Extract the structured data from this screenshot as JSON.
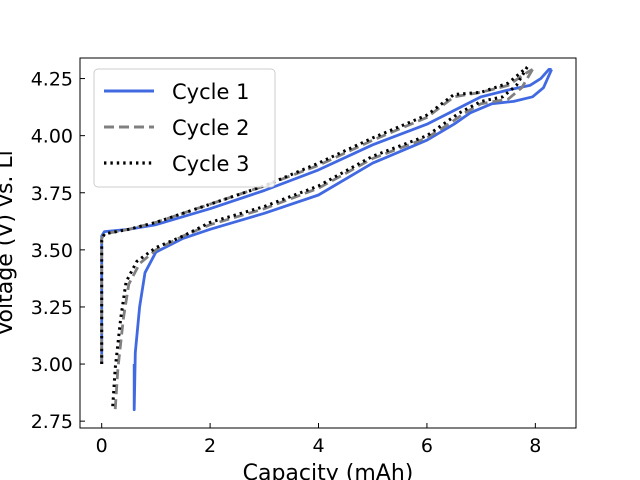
{
  "chart_data": {
    "type": "line",
    "xlabel": "Capacity (mAh)",
    "ylabel": "Voltage (V) vs. Li",
    "xlim": [
      -0.4,
      8.75
    ],
    "ylim": [
      2.72,
      4.34
    ],
    "xticks": [
      0,
      2,
      4,
      6,
      8
    ],
    "yticks": [
      2.75,
      3.0,
      3.25,
      3.5,
      3.75,
      4.0,
      4.25
    ],
    "xtick_labels": [
      "0",
      "2",
      "4",
      "6",
      "8"
    ],
    "ytick_labels": [
      "2.75",
      "3.00",
      "3.25",
      "3.50",
      "3.75",
      "4.00",
      "4.25"
    ],
    "grid": false,
    "legend_position": "top-left",
    "series": [
      {
        "name": "Cycle 1",
        "color": "#4169E1",
        "style": "solid",
        "charge": {
          "x": [
            0.0,
            0.0,
            0.05,
            0.5,
            1.0,
            2.0,
            3.0,
            4.0,
            5.0,
            6.0,
            6.5,
            7.0,
            7.5,
            7.9,
            8.1,
            8.25,
            8.3
          ],
          "y": [
            3.0,
            3.56,
            3.58,
            3.59,
            3.61,
            3.68,
            3.76,
            3.85,
            3.96,
            4.05,
            4.11,
            4.17,
            4.2,
            4.22,
            4.25,
            4.29,
            4.29
          ]
        },
        "discharge": {
          "x": [
            8.3,
            8.15,
            7.95,
            7.6,
            7.2,
            6.8,
            6.5,
            6.0,
            5.0,
            4.0,
            3.0,
            2.0,
            1.5,
            1.0,
            0.8,
            0.7,
            0.62,
            0.6,
            0.6
          ],
          "y": [
            4.29,
            4.21,
            4.17,
            4.15,
            4.14,
            4.1,
            4.05,
            3.98,
            3.88,
            3.74,
            3.66,
            3.59,
            3.55,
            3.49,
            3.4,
            3.25,
            3.05,
            2.8,
            3.0
          ]
        }
      },
      {
        "name": "Cycle 2",
        "color": "#808080",
        "style": "dashed",
        "charge": {
          "x": [
            0.0,
            0.0,
            0.05,
            0.5,
            1.0,
            2.0,
            3.0,
            4.0,
            5.0,
            6.0,
            6.5,
            7.0,
            7.5,
            7.8,
            7.95
          ],
          "y": [
            3.0,
            3.55,
            3.57,
            3.59,
            3.62,
            3.7,
            3.78,
            3.87,
            3.98,
            4.08,
            4.17,
            4.19,
            4.22,
            4.27,
            4.29
          ]
        },
        "discharge": {
          "x": [
            7.95,
            7.75,
            7.5,
            7.0,
            6.7,
            6.4,
            6.0,
            5.0,
            4.0,
            3.0,
            2.0,
            1.5,
            1.0,
            0.7,
            0.5,
            0.4,
            0.3,
            0.25
          ],
          "y": [
            4.29,
            4.21,
            4.16,
            4.14,
            4.1,
            4.05,
            3.99,
            3.9,
            3.77,
            3.68,
            3.61,
            3.56,
            3.5,
            3.44,
            3.35,
            3.2,
            2.98,
            2.8
          ]
        }
      },
      {
        "name": "Cycle 3",
        "color": "#000000",
        "style": "dotted",
        "charge": {
          "x": [
            0.0,
            0.0,
            0.05,
            0.5,
            1.0,
            2.0,
            3.0,
            4.0,
            5.0,
            6.0,
            6.5,
            7.0,
            7.5,
            7.75,
            7.85
          ],
          "y": [
            3.0,
            3.54,
            3.57,
            3.59,
            3.62,
            3.7,
            3.78,
            3.88,
            3.99,
            4.09,
            4.18,
            4.19,
            4.23,
            4.28,
            4.3
          ]
        },
        "discharge": {
          "x": [
            7.85,
            7.65,
            7.4,
            7.0,
            6.6,
            6.3,
            6.0,
            5.0,
            4.0,
            3.0,
            2.0,
            1.5,
            1.0,
            0.65,
            0.45,
            0.35,
            0.25,
            0.2
          ],
          "y": [
            4.3,
            4.22,
            4.17,
            4.15,
            4.1,
            4.05,
            4.0,
            3.91,
            3.78,
            3.69,
            3.62,
            3.56,
            3.51,
            3.45,
            3.36,
            3.2,
            2.98,
            2.8
          ]
        }
      }
    ]
  }
}
